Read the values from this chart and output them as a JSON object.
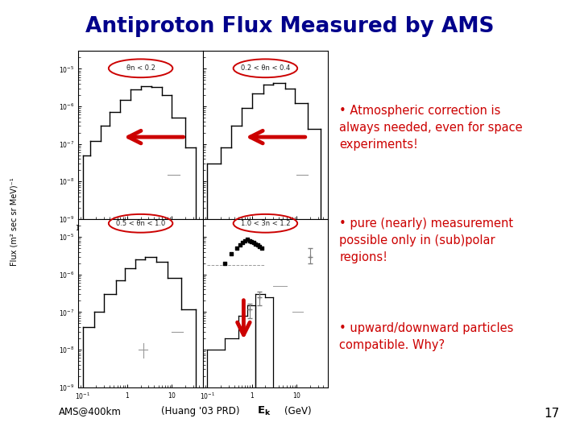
{
  "title": "Antiproton Flux Measured by AMS",
  "title_color": "#00008B",
  "background_color": "#FFFFFF",
  "bullet_points": [
    "• Atmospheric correction is\nalways needed, even for space\nexperiments!",
    "• pure (nearly) measurement\npossible only in (sub)polar\nregions!",
    "• upward/downward particles\ncompatible. Why?"
  ],
  "bullet_color": "#CC0000",
  "page_number": "17",
  "plot_labels_top": [
    "θn < 0.2",
    "0.2 < θn < 0.4"
  ],
  "plot_labels_bot": [
    "0.5 < θn < 1.0",
    "1.0 < 3n < 1.2"
  ],
  "ylabel": "Flux (m² sec sr MeV)⁻¹",
  "hline_color": "#888888",
  "arrow_color": "#CC0000",
  "ellipse_color": "#CC0000",
  "tick_color": "#555555",
  "hist_color": "#000000",
  "scatter_color": "#000000",
  "gray_dash_color": "#999999"
}
